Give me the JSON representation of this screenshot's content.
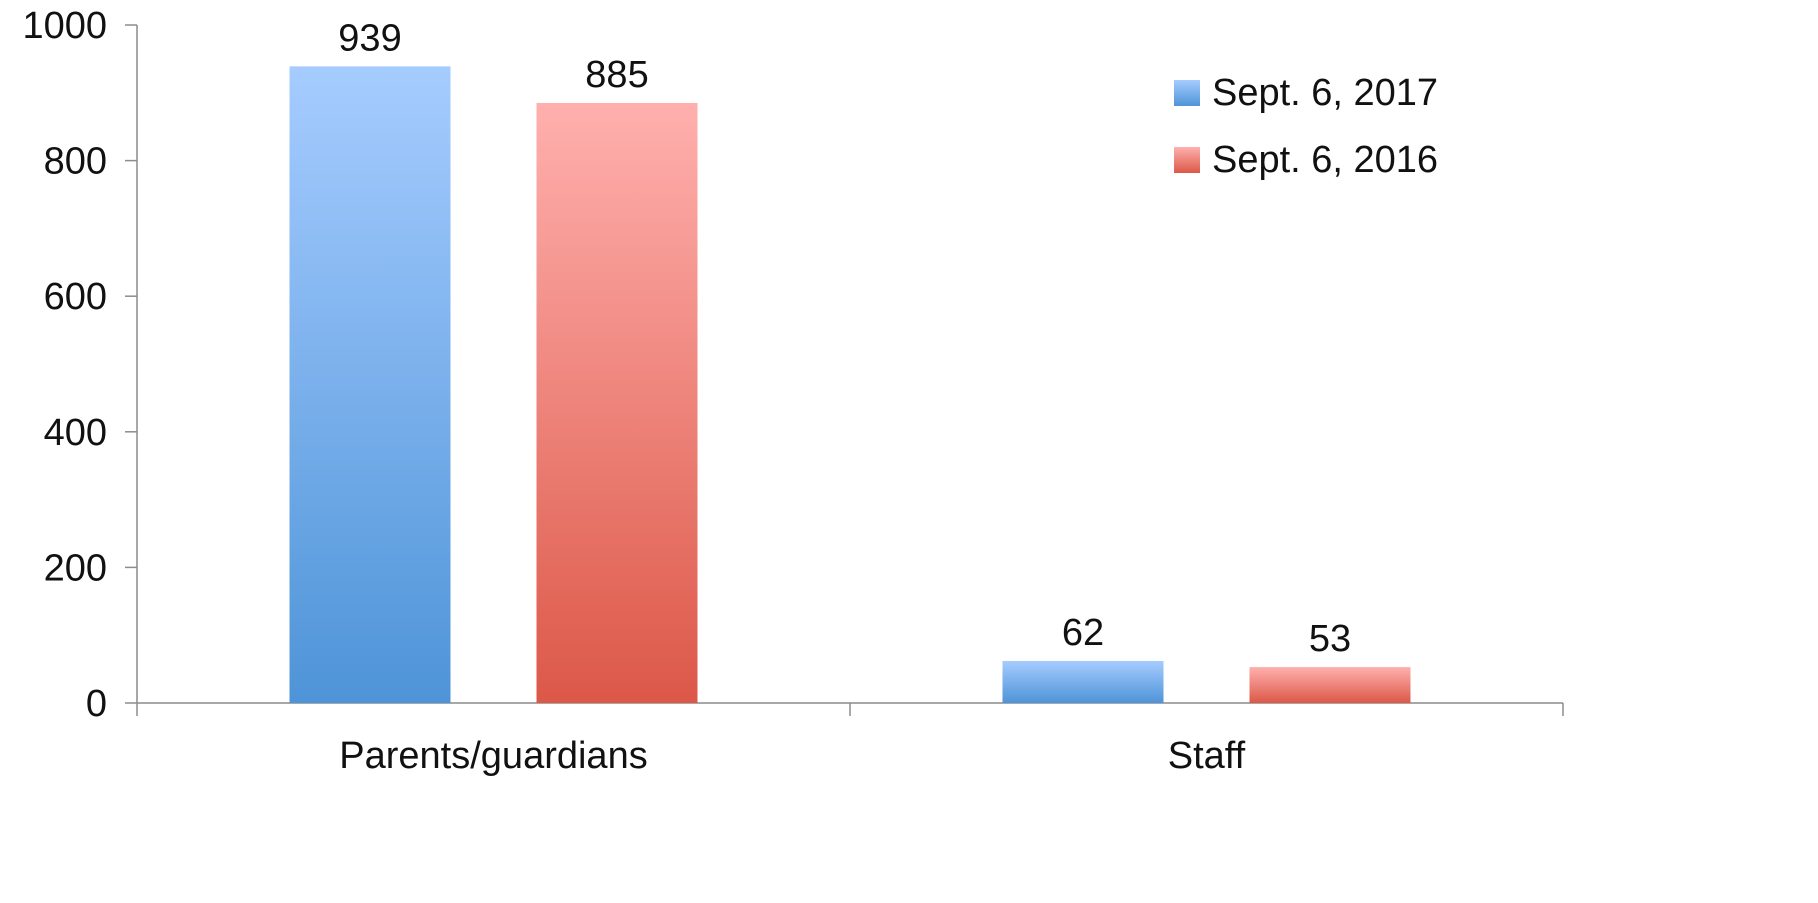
{
  "chart_data": {
    "type": "bar",
    "categories": [
      "Parents/guardians",
      "Staff"
    ],
    "series": [
      {
        "name": "Sept. 6, 2017",
        "values": [
          939,
          62
        ],
        "color_top": "#a6ccff",
        "color_bottom": "#4e94d8"
      },
      {
        "name": "Sept. 6, 2016",
        "values": [
          885,
          53
        ],
        "color_top": "#ffb0ae",
        "color_bottom": "#dc5848"
      }
    ],
    "ylim": [
      0,
      1000
    ],
    "yticks": [
      0,
      200,
      400,
      600,
      800,
      1000
    ],
    "grid": false,
    "legend_position": "top-right",
    "data_labels": true
  }
}
